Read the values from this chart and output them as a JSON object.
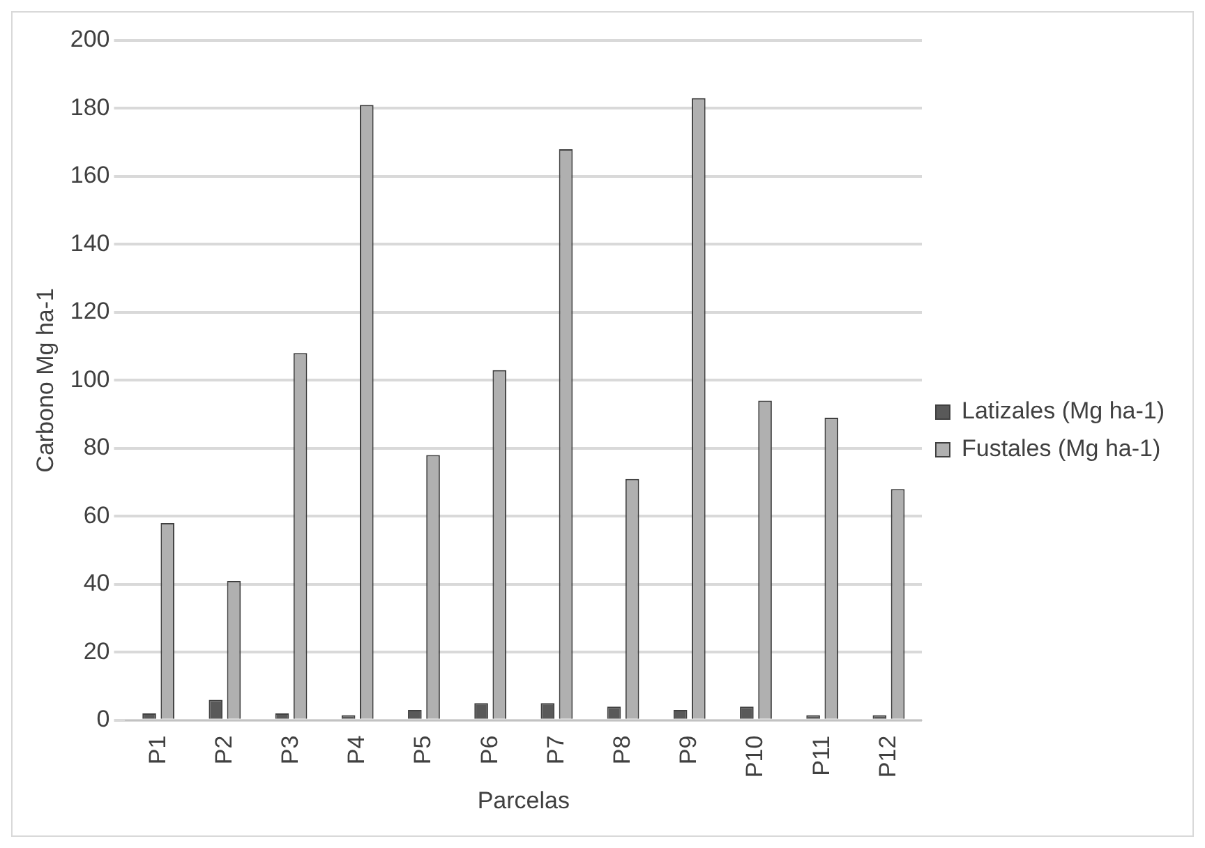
{
  "chart_data": {
    "type": "bar",
    "xlabel": "Parcelas",
    "ylabel": "Carbono Mg ha-1",
    "categories": [
      "P1",
      "P2",
      "P3",
      "P4",
      "P5",
      "P6",
      "P7",
      "P8",
      "P9",
      "P10",
      "P11",
      "P12"
    ],
    "series": [
      {
        "name": "Latizales (Mg ha-1)",
        "color": "#595959",
        "values": [
          2,
          6,
          2,
          1.5,
          3,
          5,
          5,
          4,
          3,
          4,
          1.5,
          1.5
        ]
      },
      {
        "name": "Fustales (Mg ha-1)",
        "color": "#b0b0b0",
        "values": [
          58,
          41,
          108,
          181,
          78,
          103,
          168,
          71,
          183,
          94,
          89,
          68
        ]
      }
    ],
    "ylim": [
      0,
      200
    ],
    "yticks": [
      0,
      20,
      40,
      60,
      80,
      100,
      120,
      140,
      160,
      180,
      200
    ],
    "grid": "y",
    "legend": "right"
  }
}
